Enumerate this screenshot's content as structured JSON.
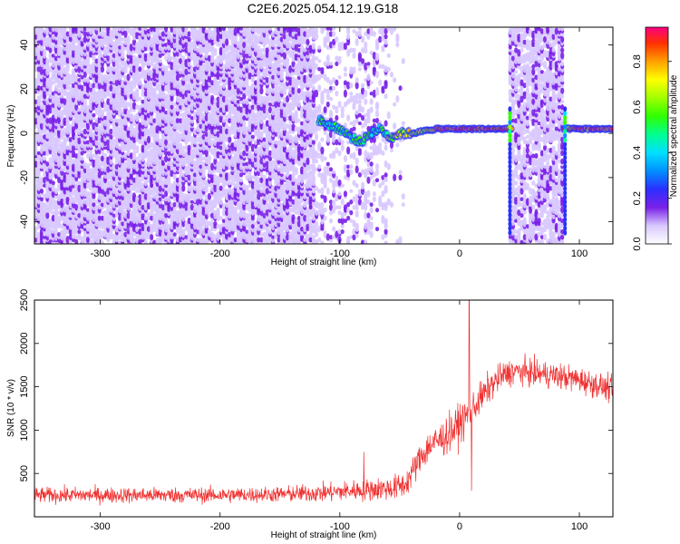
{
  "title": "C2E6.2025.054.12.19.G18",
  "colors": {
    "snr_line": "#f03030",
    "noise_purple": "#7020e0",
    "light_purple": "#c8a8f0"
  },
  "chart_data": [
    {
      "type": "heatmap",
      "xlabel": "Height of straight line (km)",
      "ylabel": "Frequency (Hz)",
      "xlim": [
        -355,
        128
      ],
      "ylim": [
        -50,
        48
      ],
      "xticks": [
        -300,
        -200,
        -100,
        0,
        100
      ],
      "yticks": [
        -40,
        -20,
        0,
        20,
        40
      ],
      "grid": false,
      "colorbar": {
        "label": "Normalized spectral amplitude",
        "range": [
          0.0,
          0.95
        ],
        "ticks": [
          "0.0",
          "0.2",
          "0.4",
          "0.6",
          "0.8"
        ],
        "colormap": "rainbow",
        "stops": [
          [
            0.0,
            "#ffffff"
          ],
          [
            0.08,
            "#d8c8ff"
          ],
          [
            0.16,
            "#7a20e8"
          ],
          [
            0.24,
            "#2a30ff"
          ],
          [
            0.32,
            "#0090ff"
          ],
          [
            0.4,
            "#00e0ff"
          ],
          [
            0.48,
            "#00ff90"
          ],
          [
            0.56,
            "#30ff00"
          ],
          [
            0.64,
            "#a0ff00"
          ],
          [
            0.72,
            "#ffff00"
          ],
          [
            0.8,
            "#ffa000"
          ],
          [
            0.88,
            "#ff3000"
          ],
          [
            0.95,
            "#ff0080"
          ]
        ]
      },
      "signal_track": {
        "description_points_km_hz": [
          [
            -118,
            6
          ],
          [
            -110,
            4
          ],
          [
            -100,
            2
          ],
          [
            -90,
            -2
          ],
          [
            -82,
            -4
          ],
          [
            -75,
            0
          ],
          [
            -66,
            2
          ],
          [
            -58,
            -2
          ],
          [
            -50,
            0
          ],
          [
            -40,
            0
          ],
          [
            -30,
            1
          ],
          [
            -20,
            2
          ],
          [
            -10,
            2
          ],
          [
            0,
            2
          ],
          [
            20,
            2
          ],
          [
            40,
            2
          ],
          [
            90,
            2
          ],
          [
            128,
            2
          ]
        ]
      },
      "vertical_bands_km": [
        [
          -120,
          -58
        ],
        [
          42,
          88
        ]
      ]
    },
    {
      "type": "line",
      "xlabel": "Height of straight line (km)",
      "ylabel": "SNR (10 * v/v)",
      "xlim": [
        -355,
        128
      ],
      "ylim": [
        0,
        2500
      ],
      "xticks": [
        -300,
        -200,
        -100,
        0,
        100
      ],
      "yticks": [
        500,
        1000,
        1500,
        2000,
        2500
      ],
      "grid": false,
      "series": [
        {
          "envelope_km_snr": [
            [
              -355,
              250
            ],
            [
              -300,
              250
            ],
            [
              -200,
              250
            ],
            [
              -150,
              260
            ],
            [
              -110,
              280
            ],
            [
              -90,
              300
            ],
            [
              -70,
              320
            ],
            [
              -55,
              330
            ],
            [
              -45,
              380
            ],
            [
              -38,
              550
            ],
            [
              -32,
              700
            ],
            [
              -25,
              820
            ],
            [
              -15,
              900
            ],
            [
              -5,
              1000
            ],
            [
              5,
              1150
            ],
            [
              15,
              1320
            ],
            [
              25,
              1500
            ],
            [
              35,
              1620
            ],
            [
              45,
              1680
            ],
            [
              60,
              1660
            ],
            [
              80,
              1630
            ],
            [
              100,
              1580
            ],
            [
              115,
              1520
            ],
            [
              128,
              1460
            ]
          ],
          "noise_amplitude": [
            [
              -355,
              110
            ],
            [
              -150,
              110
            ],
            [
              -100,
              140
            ],
            [
              -60,
              170
            ],
            [
              -40,
              200
            ],
            [
              -20,
              250
            ],
            [
              0,
              280
            ],
            [
              20,
              220
            ],
            [
              40,
              190
            ],
            [
              128,
              180
            ]
          ],
          "spikes_km_snr": [
            [
              8,
              2500
            ],
            [
              10,
              300
            ],
            [
              -80,
              750
            ]
          ]
        }
      ]
    }
  ]
}
